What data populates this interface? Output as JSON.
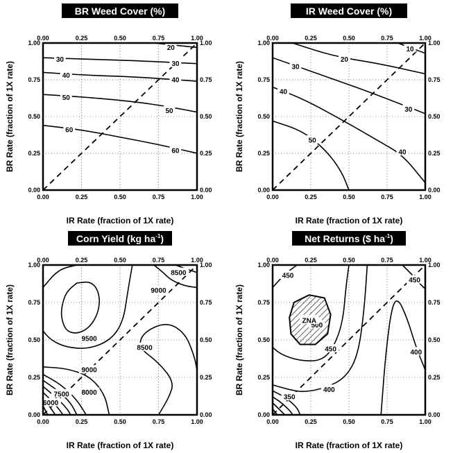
{
  "chart_data": [
    {
      "type": "contour",
      "title": "BR Weed Cover (%)",
      "title_sup": "",
      "title_tail": "",
      "xlabel": "IR Rate (fraction of 1X rate)",
      "ylabel": "BR Rate (fraction of 1X rate)",
      "xlim": [
        0,
        1
      ],
      "ylim": [
        0,
        1
      ],
      "ticks": [
        "0.00",
        "0.25",
        "0.50",
        "0.75",
        "1.00"
      ],
      "tick_values": [
        0,
        0.25,
        0.5,
        0.75,
        1
      ],
      "xlabel_shown": true,
      "grid": true,
      "diagonal": true,
      "contours": [
        {
          "level": "20",
          "points": [
            [
              0.72,
              1.0
            ],
            [
              1.0,
              0.97
            ]
          ]
        },
        {
          "level": "30",
          "points": [
            [
              0,
              0.9
            ],
            [
              0.3,
              0.89
            ],
            [
              0.6,
              0.88
            ],
            [
              1.0,
              0.86
            ]
          ]
        },
        {
          "level": "40",
          "points": [
            [
              0,
              0.8
            ],
            [
              0.3,
              0.78
            ],
            [
              0.6,
              0.77
            ],
            [
              1.0,
              0.74
            ]
          ]
        },
        {
          "level": "50",
          "points": [
            [
              0,
              0.65
            ],
            [
              0.3,
              0.63
            ],
            [
              0.6,
              0.6
            ],
            [
              0.8,
              0.57
            ],
            [
              1.0,
              0.53
            ]
          ]
        },
        {
          "level": "60",
          "points": [
            [
              0,
              0.44
            ],
            [
              0.25,
              0.41
            ],
            [
              0.5,
              0.36
            ],
            [
              0.75,
              0.31
            ],
            [
              1.0,
              0.25
            ]
          ]
        }
      ],
      "contour_labels": [
        {
          "text": "20",
          "x": 0.83,
          "y": 0.97
        },
        {
          "text": "30",
          "x": 0.11,
          "y": 0.89
        },
        {
          "text": "30",
          "x": 0.86,
          "y": 0.86
        },
        {
          "text": "40",
          "x": 0.15,
          "y": 0.78
        },
        {
          "text": "40",
          "x": 0.86,
          "y": 0.75
        },
        {
          "text": "50",
          "x": 0.15,
          "y": 0.63
        },
        {
          "text": "50",
          "x": 0.82,
          "y": 0.54
        },
        {
          "text": "60",
          "x": 0.17,
          "y": 0.41
        },
        {
          "text": "60",
          "x": 0.86,
          "y": 0.27
        }
      ],
      "hatched_region": null
    },
    {
      "type": "contour",
      "title": "IR Weed Cover (%)",
      "title_sup": "",
      "title_tail": "",
      "xlabel": "IR Rate (fraction of 1X rate)",
      "ylabel": "BR Rate (fraction of 1X rate)",
      "xlim": [
        0,
        1
      ],
      "ylim": [
        0,
        1
      ],
      "ticks": [
        "0.00",
        "0.25",
        "0.50",
        "0.75",
        "1.00"
      ],
      "tick_values": [
        0,
        0.25,
        0.5,
        0.75,
        1
      ],
      "xlabel_shown": true,
      "grid": true,
      "diagonal": true,
      "contours": [
        {
          "level": "10",
          "points": [
            [
              0.82,
              1.0
            ],
            [
              1.0,
              0.93
            ]
          ]
        },
        {
          "level": "20",
          "points": [
            [
              0.13,
              1.0
            ],
            [
              0.4,
              0.91
            ],
            [
              0.7,
              0.86
            ],
            [
              1.0,
              0.79
            ]
          ]
        },
        {
          "level": "30",
          "points": [
            [
              0,
              0.9
            ],
            [
              0.3,
              0.79
            ],
            [
              0.6,
              0.68
            ],
            [
              0.85,
              0.58
            ],
            [
              1.0,
              0.52
            ]
          ]
        },
        {
          "level": "40",
          "points": [
            [
              0,
              0.7
            ],
            [
              0.2,
              0.62
            ],
            [
              0.45,
              0.48
            ],
            [
              0.7,
              0.33
            ],
            [
              0.85,
              0.24
            ],
            [
              1.0,
              0.05
            ]
          ]
        },
        {
          "level": "50",
          "points": [
            [
              0,
              0.47
            ],
            [
              0.2,
              0.4
            ],
            [
              0.35,
              0.27
            ],
            [
              0.45,
              0.13
            ],
            [
              0.5,
              0.0
            ]
          ]
        }
      ],
      "contour_labels": [
        {
          "text": "10",
          "x": 0.9,
          "y": 0.96
        },
        {
          "text": "20",
          "x": 0.47,
          "y": 0.89
        },
        {
          "text": "30",
          "x": 0.15,
          "y": 0.84
        },
        {
          "text": "30",
          "x": 0.89,
          "y": 0.55
        },
        {
          "text": "40",
          "x": 0.07,
          "y": 0.67
        },
        {
          "text": "40",
          "x": 0.85,
          "y": 0.26
        },
        {
          "text": "50",
          "x": 0.26,
          "y": 0.34
        }
      ],
      "hatched_region": null
    },
    {
      "type": "contour",
      "title": "Corn Yield (kg ha",
      "title_sup": "-1",
      "title_tail": ")",
      "xlabel": "IR Rate (fraction of 1X rate)",
      "ylabel": "BR Rate (fraction of 1X rate)",
      "xlim": [
        0,
        1
      ],
      "ylim": [
        0,
        1
      ],
      "ticks": [
        "0.00",
        "0.25",
        "0.50",
        "0.75",
        "1.00"
      ],
      "tick_values": [
        0,
        0.25,
        0.5,
        0.75,
        1
      ],
      "xlabel_shown": true,
      "grid": true,
      "diagonal": true,
      "contours": [
        {
          "level": "9500",
          "points": [
            [
              0.22,
              0.88
            ],
            [
              0.32,
              0.89
            ],
            [
              0.37,
              0.8
            ],
            [
              0.36,
              0.68
            ],
            [
              0.3,
              0.58
            ],
            [
              0.22,
              0.54
            ],
            [
              0.15,
              0.56
            ],
            [
              0.12,
              0.64
            ],
            [
              0.12,
              0.72
            ],
            [
              0.15,
              0.82
            ],
            [
              0.22,
              0.88
            ]
          ]
        },
        {
          "level": "9000",
          "points": [
            [
              0.0,
              0.85
            ],
            [
              0.1,
              0.97
            ],
            [
              0.22,
              1.0
            ]
          ]
        },
        {
          "level": "9000",
          "points": [
            [
              0.58,
              1.0
            ],
            [
              0.55,
              0.82
            ],
            [
              0.52,
              0.62
            ],
            [
              0.44,
              0.5
            ],
            [
              0.3,
              0.44
            ],
            [
              0.15,
              0.45
            ],
            [
              0.05,
              0.5
            ],
            [
              0.0,
              0.56
            ]
          ]
        },
        {
          "level": "9000",
          "points": [
            [
              0.72,
              1.0
            ],
            [
              0.78,
              0.95
            ],
            [
              0.83,
              0.9
            ],
            [
              0.92,
              0.86
            ],
            [
              1.0,
              0.85
            ]
          ]
        },
        {
          "level": "8500",
          "points": [
            [
              0.86,
              1.0
            ],
            [
              0.94,
              0.97
            ],
            [
              1.0,
              0.95
            ]
          ]
        },
        {
          "level": "8500",
          "points": [
            [
              0.75,
              0.0
            ],
            [
              0.82,
              0.12
            ],
            [
              0.85,
              0.22
            ],
            [
              0.75,
              0.35
            ],
            [
              0.62,
              0.45
            ],
            [
              0.65,
              0.55
            ],
            [
              0.8,
              0.62
            ],
            [
              0.92,
              0.55
            ],
            [
              0.98,
              0.4
            ],
            [
              1.0,
              0.3
            ]
          ]
        },
        {
          "level": "8000",
          "points": [
            [
              0.0,
              0.32
            ],
            [
              0.15,
              0.31
            ],
            [
              0.3,
              0.26
            ],
            [
              0.4,
              0.14
            ],
            [
              0.43,
              0.0
            ]
          ]
        },
        {
          "level": "7500",
          "points": [
            [
              0.0,
              0.27
            ],
            [
              0.12,
              0.2
            ],
            [
              0.22,
              0.1
            ],
            [
              0.28,
              0.0
            ]
          ]
        },
        {
          "level": "7000",
          "points": [
            [
              0.0,
              0.23
            ],
            [
              0.1,
              0.16
            ],
            [
              0.18,
              0.08
            ],
            [
              0.22,
              0.0
            ]
          ]
        },
        {
          "level": "6500",
          "points": [
            [
              0.0,
              0.19
            ],
            [
              0.08,
              0.12
            ],
            [
              0.15,
              0.05
            ],
            [
              0.18,
              0.0
            ]
          ]
        },
        {
          "level": "6000",
          "points": [
            [
              0.0,
              0.15
            ],
            [
              0.06,
              0.09
            ],
            [
              0.11,
              0.03
            ],
            [
              0.13,
              0.0
            ]
          ]
        },
        {
          "level": "5500",
          "points": [
            [
              0.0,
              0.11
            ],
            [
              0.04,
              0.06
            ],
            [
              0.08,
              0.0
            ]
          ]
        },
        {
          "level": "5000",
          "points": [
            [
              0.0,
              0.06
            ],
            [
              0.03,
              0.0
            ]
          ]
        }
      ],
      "contour_labels": [
        {
          "text": "9500",
          "x": 0.3,
          "y": 0.51
        },
        {
          "text": "9000",
          "x": 0.3,
          "y": 0.3
        },
        {
          "text": "9000",
          "x": 0.75,
          "y": 0.83
        },
        {
          "text": "8500",
          "x": 0.88,
          "y": 0.95
        },
        {
          "text": "8500",
          "x": 0.66,
          "y": 0.45
        },
        {
          "text": "8000",
          "x": 0.3,
          "y": 0.15
        },
        {
          "text": "7500",
          "x": 0.12,
          "y": 0.14
        },
        {
          "text": "6000",
          "x": 0.05,
          "y": 0.08
        }
      ],
      "hatched_region": null
    },
    {
      "type": "contour",
      "title": "Net  Returns  ($ ha",
      "title_sup": "-1",
      "title_tail": ")",
      "xlabel": "IR Rate (fraction of 1X rate)",
      "ylabel": "BR Rate (fraction of 1X rate)",
      "xlim": [
        0,
        1
      ],
      "ylim": [
        0,
        1
      ],
      "ticks": [
        "0.00",
        "0.25",
        "0.50",
        "0.75",
        "1.00"
      ],
      "tick_values": [
        0,
        0.25,
        0.5,
        0.75,
        1
      ],
      "xlabel_shown": true,
      "grid": true,
      "diagonal": true,
      "contours": [
        {
          "level": "450",
          "points": [
            [
              0.0,
              0.85
            ],
            [
              0.08,
              0.94
            ],
            [
              0.16,
              1.0
            ]
          ]
        },
        {
          "level": "450",
          "points": [
            [
              0.5,
              1.0
            ],
            [
              0.48,
              0.85
            ],
            [
              0.46,
              0.62
            ],
            [
              0.4,
              0.45
            ],
            [
              0.32,
              0.36
            ],
            [
              0.18,
              0.36
            ],
            [
              0.06,
              0.4
            ],
            [
              0.0,
              0.45
            ]
          ]
        },
        {
          "level": "450",
          "points": [
            [
              0.85,
              1.0
            ],
            [
              0.91,
              0.94
            ],
            [
              0.96,
              0.88
            ],
            [
              1.0,
              0.84
            ]
          ]
        },
        {
          "level": "400",
          "points": [
            [
              0.62,
              1.0
            ],
            [
              0.6,
              0.7
            ],
            [
              0.56,
              0.4
            ],
            [
              0.48,
              0.25
            ],
            [
              0.35,
              0.18
            ],
            [
              0.2,
              0.15
            ],
            [
              0.1,
              0.17
            ],
            [
              0.0,
              0.2
            ]
          ]
        },
        {
          "level": "400",
          "points": [
            [
              0.71,
              0.0
            ],
            [
              0.74,
              0.4
            ],
            [
              0.78,
              0.72
            ],
            [
              0.82,
              0.78
            ],
            [
              0.88,
              0.65
            ],
            [
              0.94,
              0.45
            ],
            [
              1.0,
              0.3
            ]
          ]
        },
        {
          "level": "350",
          "points": [
            [
              0.0,
              0.16
            ],
            [
              0.08,
              0.12
            ],
            [
              0.16,
              0.05
            ],
            [
              0.18,
              0.0
            ]
          ]
        },
        {
          "level": "300",
          "points": [
            [
              0.0,
              0.12
            ],
            [
              0.06,
              0.08
            ],
            [
              0.12,
              0.02
            ],
            [
              0.13,
              0.0
            ]
          ]
        },
        {
          "level": "250",
          "points": [
            [
              0.0,
              0.08
            ],
            [
              0.04,
              0.04
            ],
            [
              0.08,
              0.0
            ]
          ]
        },
        {
          "level": "200",
          "points": [
            [
              0.0,
              0.04
            ],
            [
              0.03,
              0.0
            ]
          ]
        }
      ],
      "contour_labels": [
        {
          "text": "450",
          "x": 0.1,
          "y": 0.93
        },
        {
          "text": "450",
          "x": 0.38,
          "y": 0.44
        },
        {
          "text": "450",
          "x": 0.93,
          "y": 0.9
        },
        {
          "text": "500",
          "x": 0.29,
          "y": 0.6
        },
        {
          "text": "400",
          "x": 0.37,
          "y": 0.17
        },
        {
          "text": "400",
          "x": 0.94,
          "y": 0.42
        },
        {
          "text": "350",
          "x": 0.11,
          "y": 0.12
        }
      ],
      "hatched_region": {
        "label": "ZNA",
        "label_x": 0.24,
        "label_y": 0.63,
        "points": [
          [
            0.24,
            0.8
          ],
          [
            0.34,
            0.78
          ],
          [
            0.38,
            0.67
          ],
          [
            0.36,
            0.54
          ],
          [
            0.28,
            0.47
          ],
          [
            0.18,
            0.47
          ],
          [
            0.12,
            0.54
          ],
          [
            0.11,
            0.65
          ],
          [
            0.14,
            0.75
          ],
          [
            0.24,
            0.8
          ]
        ]
      }
    }
  ]
}
